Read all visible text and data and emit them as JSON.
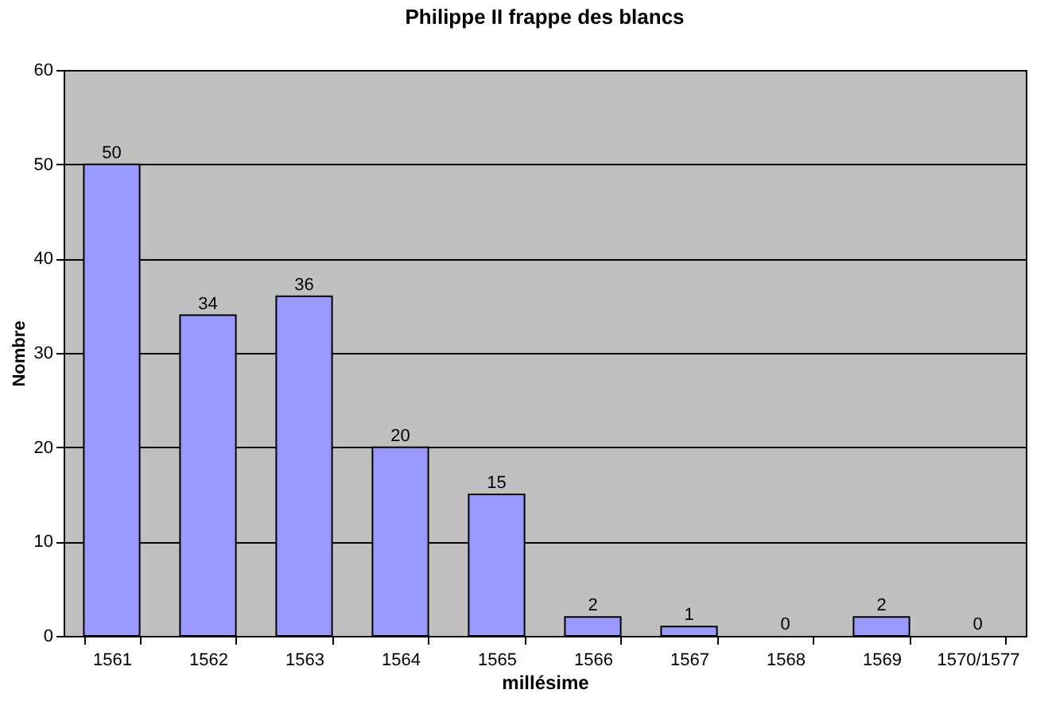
{
  "chart_data": {
    "type": "bar",
    "title": "Philippe II frappe des blancs",
    "xlabel": "millésime",
    "ylabel": "Nombre",
    "categories": [
      "1561",
      "1562",
      "1563",
      "1564",
      "1565",
      "1566",
      "1567",
      "1568",
      "1569",
      "1570/1577"
    ],
    "values": [
      50,
      34,
      36,
      20,
      15,
      2,
      1,
      0,
      2,
      0
    ],
    "color": "#9999ff",
    "ylim": [
      0,
      60
    ],
    "yticks": [
      0,
      10,
      20,
      30,
      40,
      50,
      60
    ],
    "grid": "y",
    "data_labels": true
  }
}
